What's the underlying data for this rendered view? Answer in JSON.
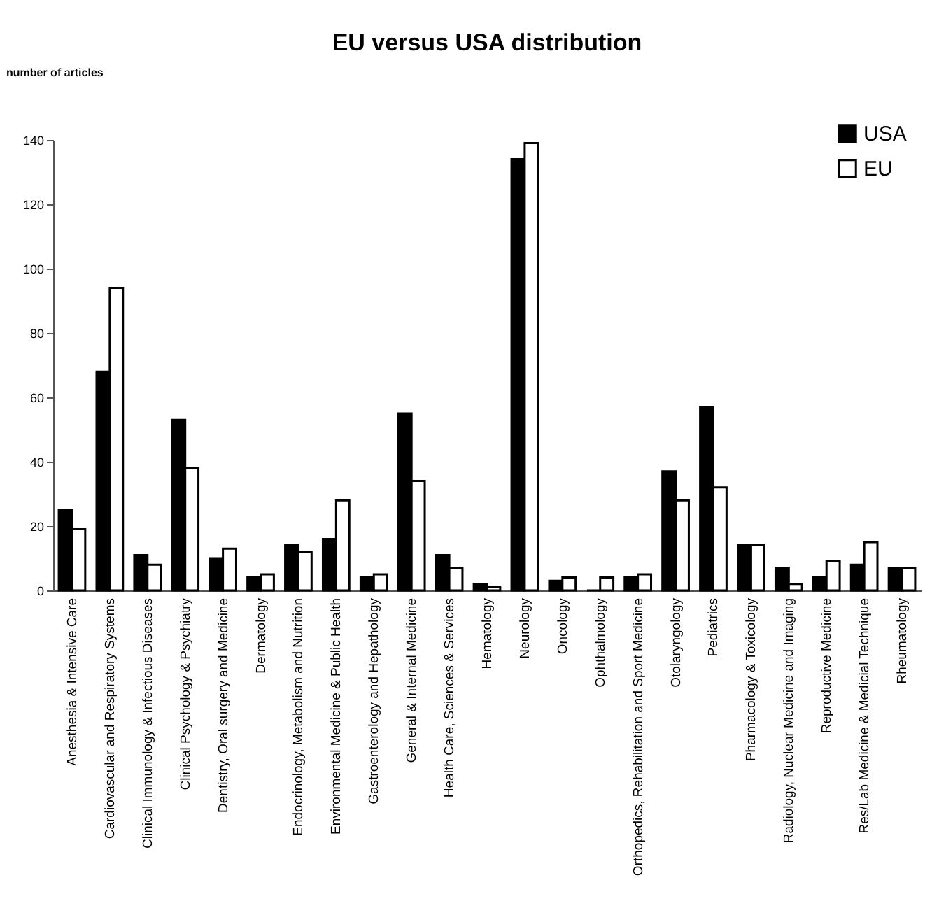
{
  "chart_data": {
    "type": "bar",
    "title": "EU versus USA distribution",
    "ylabel": "number of articles",
    "categories": [
      "Anesthesia & Intensive Care",
      "Cardiovascular and Respiratory Systems",
      "Clinical Immunology & Infectious Diseases",
      "Clinical Psychology & Psychiatry",
      "Dentistry, Oral surgery and Medicine",
      "Dermatology",
      "Endocrinology, Metabolism and Nutrition",
      "Environmental Medicine & Public Health",
      "Gastroenterology and Hepathology",
      "General & Internal Medicine",
      "Health Care, Sciences & Services",
      "Hematology",
      "Neurology",
      "Oncology",
      "Ophthalmology",
      "Orthopedics, Rehabilitation and Sport Medicine",
      "Otolaryngology",
      "Pediatrics",
      "Pharmacology & Toxicology",
      "Radiology, Nuclear Medicine and Imaging",
      "Reproductive Medicine",
      "Res/Lab Medicine & Medicial Technique",
      "Rheumatology"
    ],
    "series": [
      {
        "name": "USA",
        "color": "#000000",
        "values": [
          25,
          68,
          11,
          53,
          10,
          4,
          14,
          16,
          4,
          55,
          11,
          2,
          134,
          3,
          0,
          4,
          37,
          57,
          14,
          7,
          4,
          8,
          7
        ]
      },
      {
        "name": "EU",
        "color": "#ffffff",
        "values": [
          19,
          94,
          8,
          38,
          13,
          5,
          12,
          28,
          5,
          34,
          7,
          1,
          139,
          4,
          4,
          5,
          28,
          32,
          14,
          2,
          9,
          15,
          7
        ]
      }
    ],
    "ylim": [
      0,
      140
    ],
    "yticks": [
      0,
      20,
      40,
      60,
      80,
      100,
      120,
      140
    ],
    "legend": "top right"
  }
}
